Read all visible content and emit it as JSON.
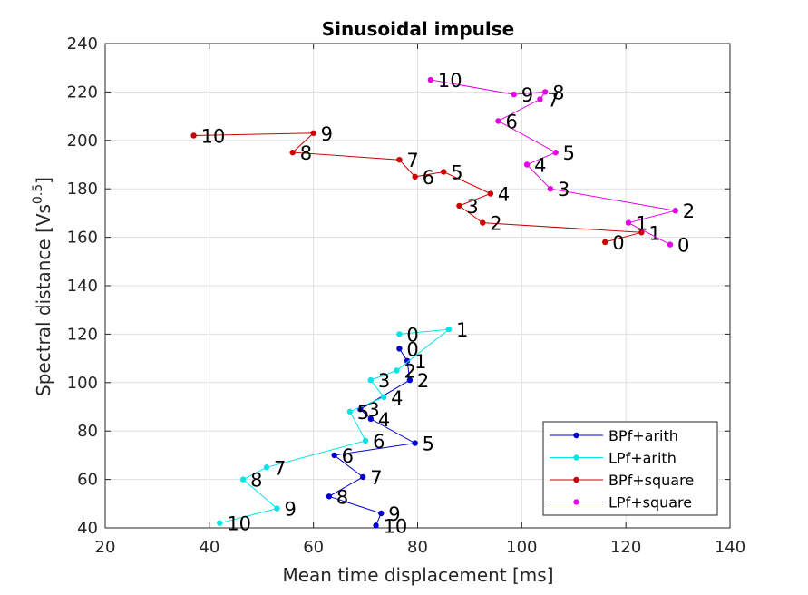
{
  "chart_data": {
    "type": "line",
    "title": "Sinusoidal impulse",
    "xlabel": "Mean time displacement [ms]",
    "ylabel_main": "Spectral distance [Vs",
    "ylabel_sup": "0.5",
    "ylabel_tail": "]",
    "xlim": [
      20,
      140
    ],
    "ylim": [
      40,
      240
    ],
    "xticks": [
      20,
      40,
      60,
      80,
      100,
      120,
      140
    ],
    "yticks": [
      40,
      60,
      80,
      100,
      120,
      140,
      160,
      180,
      200,
      220,
      240
    ],
    "grid": true,
    "legend_position": "bottom-right",
    "series": [
      {
        "name": "BPf+arith",
        "color": "#0000cc",
        "x": [
          76.5,
          78,
          78.5,
          69,
          71,
          79.5,
          64,
          69.5,
          63,
          73,
          72
        ],
        "y": [
          114,
          109,
          101,
          89,
          85,
          75,
          70,
          61,
          53,
          46,
          41
        ],
        "labels": [
          "0",
          "1",
          "2",
          "3",
          "4",
          "5",
          "6",
          "7",
          "8",
          "9",
          "10"
        ]
      },
      {
        "name": "LPf+arith",
        "color": "#00e5e5",
        "x": [
          76.5,
          86,
          76,
          71,
          73.5,
          67,
          70,
          51,
          46.5,
          53,
          42
        ],
        "y": [
          120,
          122,
          105,
          101,
          94,
          88,
          76,
          65,
          60,
          48,
          42
        ],
        "labels": [
          "0",
          "1",
          "2",
          "3",
          "4",
          "5",
          "6",
          "7",
          "8",
          "9",
          "10"
        ]
      },
      {
        "name": "BPf+square",
        "color": "#cc0000",
        "x": [
          116,
          123,
          92.5,
          88,
          94,
          85,
          79.5,
          76.5,
          56,
          60,
          37
        ],
        "y": [
          158,
          162,
          166,
          173,
          178,
          187,
          185,
          192,
          195,
          203,
          202
        ],
        "labels": [
          "0",
          "1",
          "2",
          "3",
          "4",
          "5",
          "6",
          "7",
          "8",
          "9",
          "10"
        ]
      },
      {
        "name": "LPf+square",
        "color": "#e600e6",
        "x": [
          128.5,
          120.5,
          129.5,
          105.5,
          101,
          106.5,
          95.5,
          103.5,
          104.5,
          98.5,
          82.5
        ],
        "y": [
          157,
          166,
          171,
          180,
          190,
          195,
          208,
          217,
          220,
          219,
          225
        ],
        "labels": [
          "0",
          "1",
          "2",
          "3",
          "4",
          "5",
          "6",
          "7",
          "8",
          "9",
          "10"
        ]
      }
    ]
  }
}
